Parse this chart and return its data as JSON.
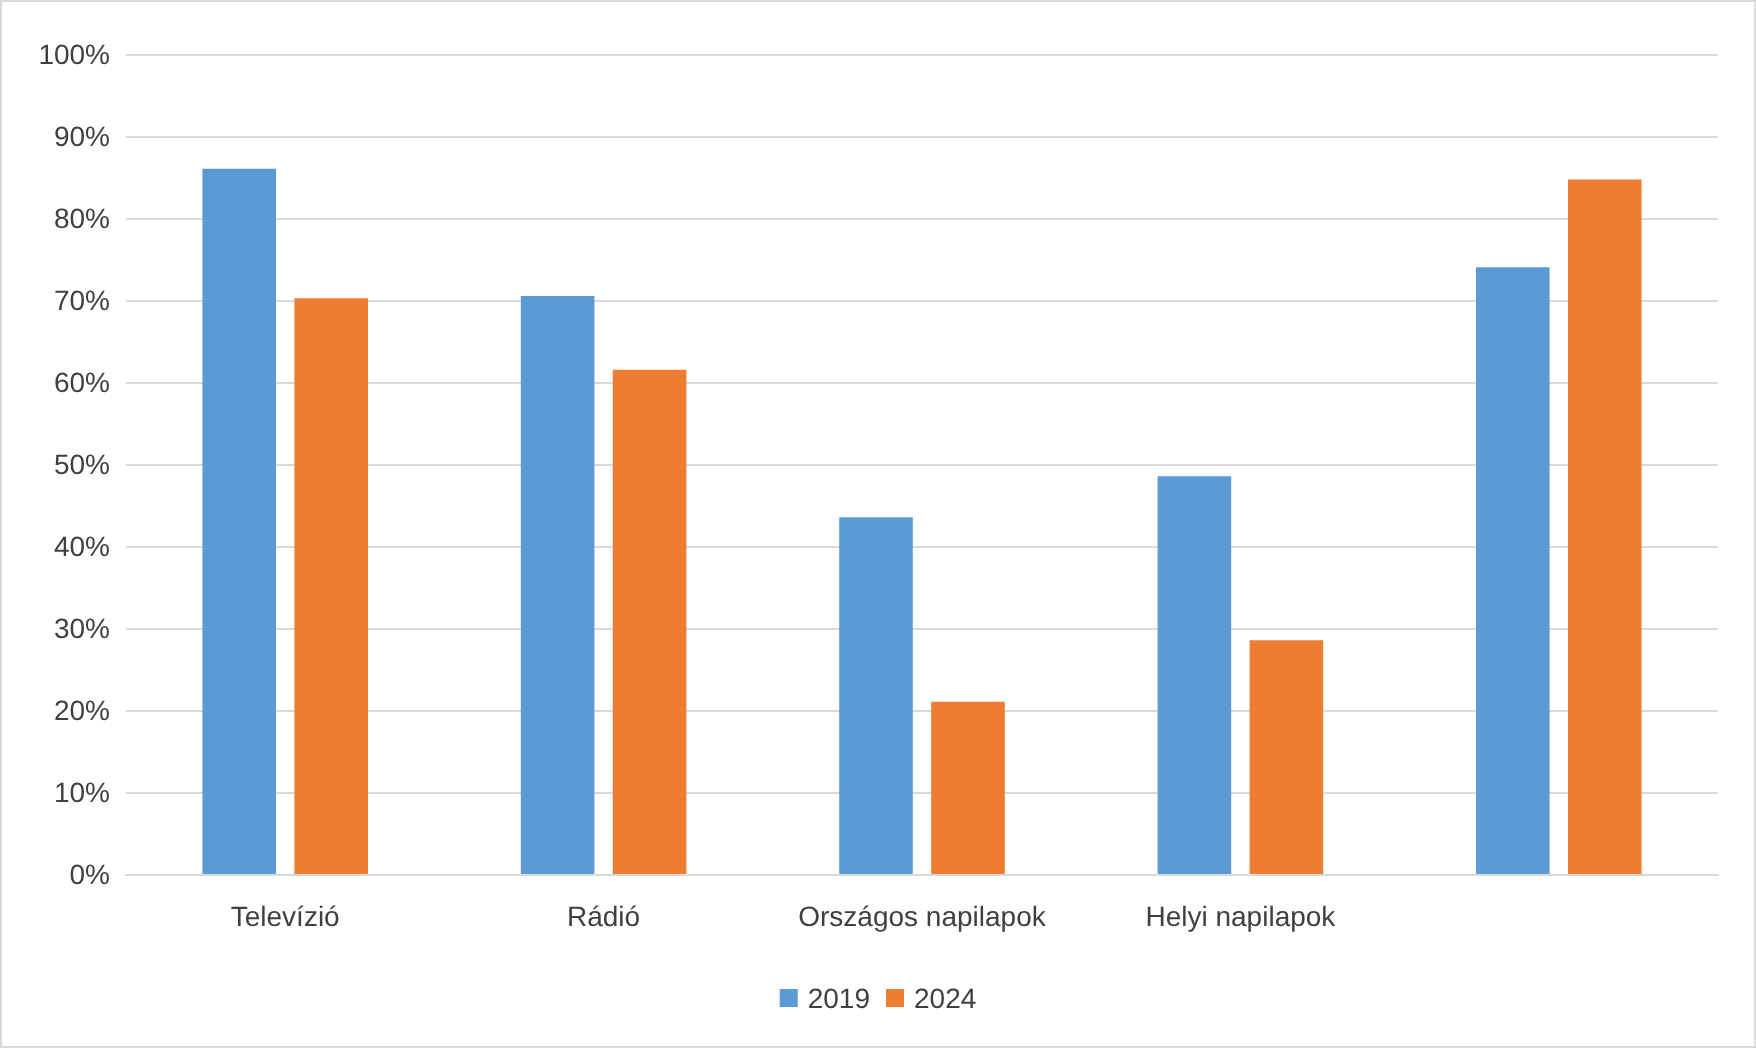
{
  "chart_data": {
    "type": "bar",
    "categories": [
      "Televízió",
      "Rádió",
      "Országos napilapok",
      "Helyi napilapok",
      null
    ],
    "series": [
      {
        "name": "2019",
        "color": "#5b9bd5",
        "values": [
          86,
          70.5,
          43.5,
          48.5,
          74
        ]
      },
      {
        "name": "2024",
        "color": "#ed7d31",
        "values": [
          70.2,
          61.5,
          21,
          28.5,
          84.7
        ]
      }
    ],
    "ylim": [
      0,
      100
    ],
    "yticks": [
      {
        "value": 0,
        "label": "0%"
      },
      {
        "value": 10,
        "label": "10%"
      },
      {
        "value": 20,
        "label": "20%"
      },
      {
        "value": 30,
        "label": "30%"
      },
      {
        "value": 40,
        "label": "40%"
      },
      {
        "value": 50,
        "label": "50%"
      },
      {
        "value": 60,
        "label": "60%"
      },
      {
        "value": 70,
        "label": "70%"
      },
      {
        "value": 80,
        "label": "80%"
      },
      {
        "value": 90,
        "label": "90%"
      },
      {
        "value": 100,
        "label": "100%"
      }
    ],
    "grid": "y",
    "legend": "bottom"
  }
}
